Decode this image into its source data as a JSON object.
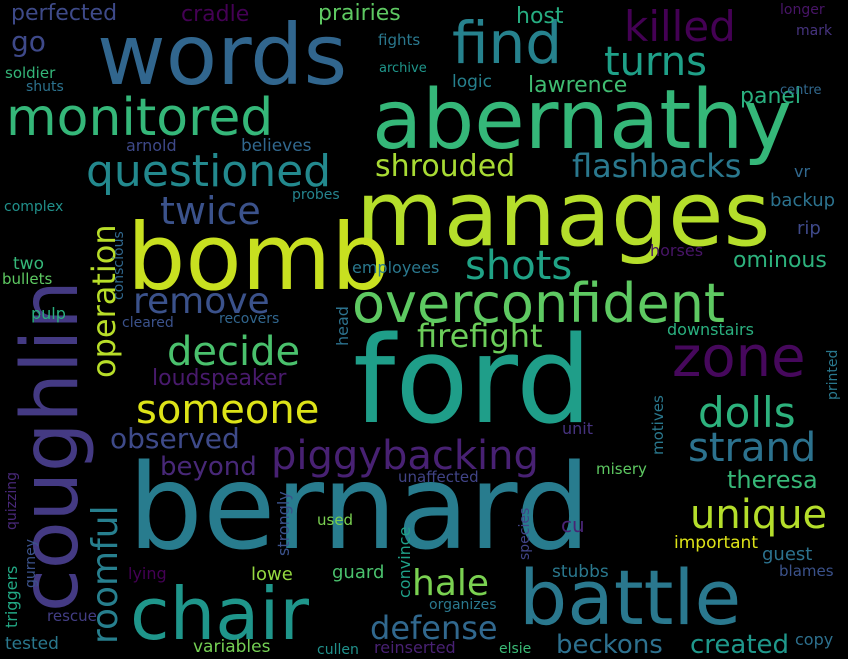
{
  "words": [
    {
      "text": "ford",
      "color": "#1f9e89"
    },
    {
      "text": "bernard",
      "color": "#287c8e"
    },
    {
      "text": "manages",
      "color": "#b5de2b"
    },
    {
      "text": "bomb",
      "color": "#c8e020"
    },
    {
      "text": "abernathy",
      "color": "#35b779"
    },
    {
      "text": "words",
      "color": "#31668e"
    },
    {
      "text": "coughlin",
      "color": "#443a83"
    },
    {
      "text": "overconfident",
      "color": "#5ec962"
    },
    {
      "text": "chair",
      "color": "#1f968b"
    },
    {
      "text": "battle",
      "color": "#2a788e"
    },
    {
      "text": "find",
      "color": "#26828e"
    },
    {
      "text": "monitored",
      "color": "#35b779"
    },
    {
      "text": "questioned",
      "color": "#23898e"
    },
    {
      "text": "killed",
      "color": "#440154"
    },
    {
      "text": "turns",
      "color": "#1fa088"
    },
    {
      "text": "zone",
      "color": "#46085c"
    },
    {
      "text": "piggybacking",
      "color": "#482173"
    },
    {
      "text": "strand",
      "color": "#2c728e"
    },
    {
      "text": "dolls",
      "color": "#2db27d"
    },
    {
      "text": "unique",
      "color": "#b5de2b"
    },
    {
      "text": "someone",
      "color": "#dde318"
    },
    {
      "text": "remove",
      "color": "#3b528b"
    },
    {
      "text": "decide",
      "color": "#4ac16d"
    },
    {
      "text": "twice",
      "color": "#3b528b"
    },
    {
      "text": "shots",
      "color": "#20a386"
    },
    {
      "text": "shrouded",
      "color": "#a8db34"
    },
    {
      "text": "flashbacks",
      "color": "#2a788e"
    },
    {
      "text": "firefight",
      "color": "#6ccd5a"
    },
    {
      "text": "operation",
      "color": "#b8de29"
    },
    {
      "text": "roomful",
      "color": "#277f8e"
    },
    {
      "text": "observed",
      "color": "#3e4a89"
    },
    {
      "text": "beyond",
      "color": "#482878"
    },
    {
      "text": "hale",
      "color": "#7ad151"
    },
    {
      "text": "defense",
      "color": "#31688e"
    },
    {
      "text": "created",
      "color": "#1f988b"
    },
    {
      "text": "beckons",
      "color": "#2d708e"
    },
    {
      "text": "theresa",
      "color": "#37b878"
    },
    {
      "text": "loudspeaker",
      "color": "#481a6c"
    },
    {
      "text": "ominous",
      "color": "#2db27d"
    },
    {
      "text": "lawrence",
      "color": "#40bd72"
    },
    {
      "text": "panel",
      "color": "#2ab07f"
    },
    {
      "text": "prairies",
      "color": "#5ec962"
    },
    {
      "text": "perfected",
      "color": "#3e4a89"
    },
    {
      "text": "cradle",
      "color": "#440154"
    },
    {
      "text": "host",
      "color": "#26ad81"
    },
    {
      "text": "go",
      "color": "#3e4989"
    },
    {
      "text": "soldier",
      "color": "#34b679"
    },
    {
      "text": "shuts",
      "color": "#2c728e"
    },
    {
      "text": "fights",
      "color": "#2a788e"
    },
    {
      "text": "archive",
      "color": "#1f968b"
    },
    {
      "text": "logic",
      "color": "#26818e"
    },
    {
      "text": "arnold",
      "color": "#3e4989"
    },
    {
      "text": "believes",
      "color": "#31688e"
    },
    {
      "text": "probes",
      "color": "#25848e"
    },
    {
      "text": "complex",
      "color": "#21918c"
    },
    {
      "text": "two",
      "color": "#35b779"
    },
    {
      "text": "bullets",
      "color": "#5ec962"
    },
    {
      "text": "conscious",
      "color": "#31688e"
    },
    {
      "text": "pulp",
      "color": "#29af7f"
    },
    {
      "text": "cleared",
      "color": "#3b528b"
    },
    {
      "text": "recovers",
      "color": "#31668e"
    },
    {
      "text": "head",
      "color": "#2c728e"
    },
    {
      "text": "employees",
      "color": "#2a788e"
    },
    {
      "text": "horses",
      "color": "#481567"
    },
    {
      "text": "downstairs",
      "color": "#2ab07f"
    },
    {
      "text": "motives",
      "color": "#2a788e"
    },
    {
      "text": "misery",
      "color": "#5ec962"
    },
    {
      "text": "unit",
      "color": "#46337f"
    },
    {
      "text": "unaffected",
      "color": "#414487"
    },
    {
      "text": "used",
      "color": "#7ad151"
    },
    {
      "text": "important",
      "color": "#dde318"
    },
    {
      "text": "cu",
      "color": "#482475"
    },
    {
      "text": "guest",
      "color": "#2c728e"
    },
    {
      "text": "blames",
      "color": "#3b528b"
    },
    {
      "text": "copy",
      "color": "#2d708e"
    },
    {
      "text": "species",
      "color": "#414487"
    },
    {
      "text": "stubbs",
      "color": "#2a788e"
    },
    {
      "text": "guard",
      "color": "#4ac16d"
    },
    {
      "text": "convince",
      "color": "#1fa088"
    },
    {
      "text": "organizes",
      "color": "#2a788e"
    },
    {
      "text": "variables",
      "color": "#75d054"
    },
    {
      "text": "cullen",
      "color": "#21918c"
    },
    {
      "text": "reinserted",
      "color": "#482173"
    },
    {
      "text": "elsie",
      "color": "#3aba76"
    },
    {
      "text": "lowe",
      "color": "#95d840"
    },
    {
      "text": "lying",
      "color": "#440154"
    },
    {
      "text": "strongly",
      "color": "#3b528b"
    },
    {
      "text": "rescue",
      "color": "#433e85"
    },
    {
      "text": "tested",
      "color": "#2a788e"
    },
    {
      "text": "triggers",
      "color": "#22a884"
    },
    {
      "text": "quizzing",
      "color": "#482878"
    },
    {
      "text": "gurney",
      "color": "#3b528b"
    },
    {
      "text": "longer",
      "color": "#481567"
    },
    {
      "text": "mark",
      "color": "#46337f"
    },
    {
      "text": "centre",
      "color": "#31688e"
    },
    {
      "text": "vr",
      "color": "#31688e"
    },
    {
      "text": "backup",
      "color": "#2c728e"
    },
    {
      "text": "rip",
      "color": "#3e4989"
    },
    {
      "text": "printed",
      "color": "#2a788e"
    }
  ]
}
